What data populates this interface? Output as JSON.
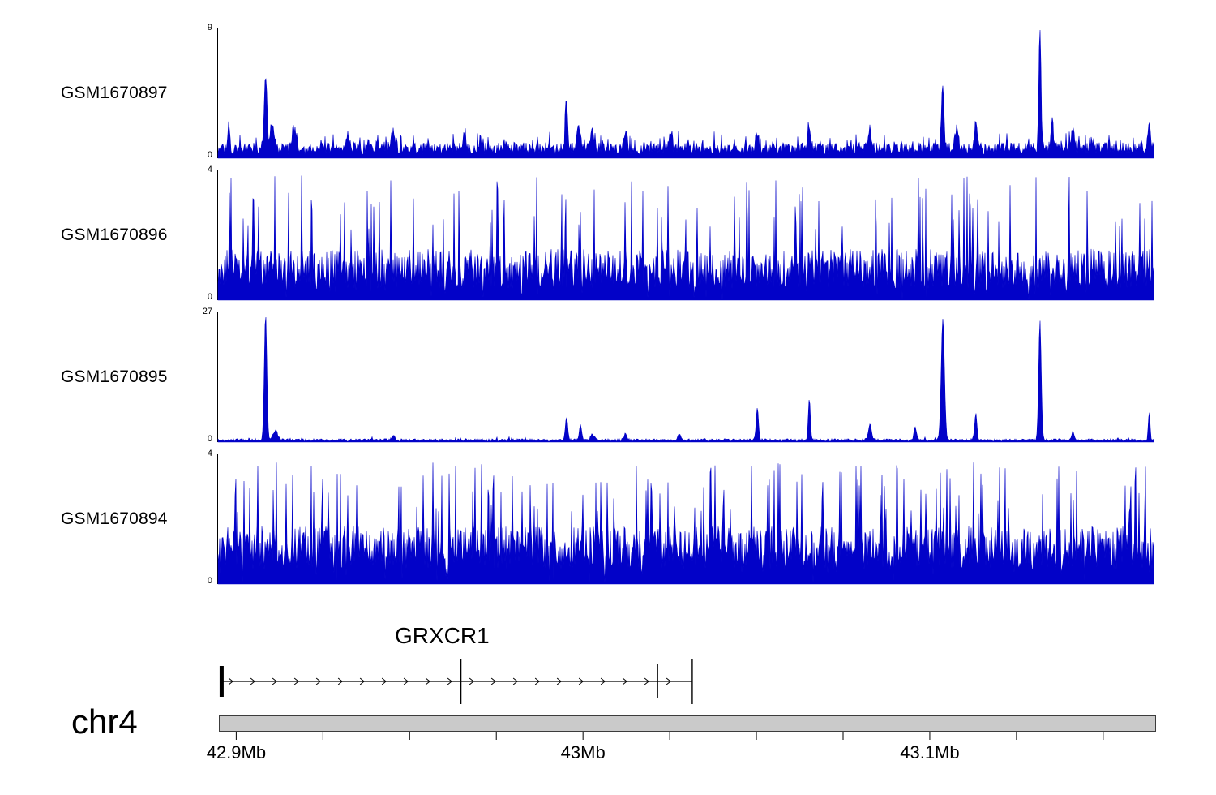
{
  "chart_data": {
    "type": "area",
    "title": "",
    "chromosome": "chr4",
    "signal_color": "#0202c8",
    "x_domain_mb": [
      42.895,
      43.165
    ],
    "x_axis": {
      "minor_step_mb": 0.025,
      "major_ticks": [
        {
          "mb": 42.9,
          "label": "42.9Mb"
        },
        {
          "mb": 43.0,
          "label": "43Mb"
        },
        {
          "mb": 43.1,
          "label": "43.1Mb"
        }
      ]
    },
    "gene": {
      "name": "GRXCR1",
      "strand": "+",
      "line_start_mb": 42.8955,
      "line_end_mb": 43.0315,
      "exons": [
        {
          "mb": 42.8958,
          "type": "thick"
        },
        {
          "mb": 42.9648,
          "type": "tall"
        },
        {
          "mb": 43.0215,
          "type": "medium"
        },
        {
          "mb": 43.0315,
          "type": "tall"
        }
      ]
    },
    "tracks": [
      {
        "name": "GSM1670897",
        "ymax": 9,
        "ymin": 0,
        "style": "sparse",
        "seed": 101,
        "base": 0.85,
        "spike_prob": 0.14,
        "spike_extra": 0.9,
        "peaks": [
          {
            "mb": 42.898,
            "h": 1.6,
            "w": 2
          },
          {
            "mb": 42.9087,
            "h": 5.4,
            "w": 2.2
          },
          {
            "mb": 42.9105,
            "h": 1.4,
            "w": 4
          },
          {
            "mb": 42.917,
            "h": 1.3,
            "w": 3
          },
          {
            "mb": 42.9325,
            "h": 0.9,
            "w": 3
          },
          {
            "mb": 42.9455,
            "h": 0.8,
            "w": 3
          },
          {
            "mb": 42.966,
            "h": 0.8,
            "w": 3
          },
          {
            "mb": 42.9955,
            "h": 3.1,
            "w": 2
          },
          {
            "mb": 42.999,
            "h": 1.4,
            "w": 3
          },
          {
            "mb": 43.003,
            "h": 1.2,
            "w": 3
          },
          {
            "mb": 43.0125,
            "h": 1.3,
            "w": 2.5
          },
          {
            "mb": 43.0255,
            "h": 1.1,
            "w": 2.5
          },
          {
            "mb": 43.0505,
            "h": 1.2,
            "w": 2.5
          },
          {
            "mb": 43.0655,
            "h": 1.3,
            "w": 2.5
          },
          {
            "mb": 43.083,
            "h": 1.0,
            "w": 2.5
          },
          {
            "mb": 43.104,
            "h": 4.7,
            "w": 2.2
          },
          {
            "mb": 43.108,
            "h": 1.5,
            "w": 2.5
          },
          {
            "mb": 43.1135,
            "h": 2.0,
            "w": 2
          },
          {
            "mb": 43.132,
            "h": 8.9,
            "w": 1.8
          },
          {
            "mb": 43.1355,
            "h": 2.0,
            "w": 2
          },
          {
            "mb": 43.1415,
            "h": 1.2,
            "w": 2.5
          },
          {
            "mb": 43.1635,
            "h": 2.2,
            "w": 1.8
          }
        ]
      },
      {
        "name": "GSM1670896",
        "ymax": 4,
        "ymin": 0,
        "style": "dense",
        "seed": 202,
        "base": 0.35,
        "jitter": 1.25,
        "spike_prob": 0.09,
        "spike_min": 2.2,
        "spike_max": 3.9
      },
      {
        "name": "GSM1670895",
        "ymax": 27,
        "ymin": 0,
        "style": "sparse",
        "seed": 303,
        "base": 0.55,
        "spike_prob": 0.04,
        "spike_extra": 0.5,
        "peaks": [
          {
            "mb": 42.9087,
            "h": 26.5,
            "w": 2.2
          },
          {
            "mb": 42.9115,
            "h": 2.0,
            "w": 4
          },
          {
            "mb": 42.9455,
            "h": 0.8,
            "w": 3
          },
          {
            "mb": 42.9955,
            "h": 4.8,
            "w": 2
          },
          {
            "mb": 42.9995,
            "h": 3.2,
            "w": 2
          },
          {
            "mb": 43.003,
            "h": 1.2,
            "w": 3
          },
          {
            "mb": 43.0125,
            "h": 1.4,
            "w": 2.5
          },
          {
            "mb": 43.028,
            "h": 1.0,
            "w": 3
          },
          {
            "mb": 43.0505,
            "h": 6.8,
            "w": 2
          },
          {
            "mb": 43.0655,
            "h": 8.5,
            "w": 1.8
          },
          {
            "mb": 43.083,
            "h": 3.4,
            "w": 2.8
          },
          {
            "mb": 43.096,
            "h": 2.8,
            "w": 2.2
          },
          {
            "mb": 43.104,
            "h": 25.8,
            "w": 2.8
          },
          {
            "mb": 43.1135,
            "h": 5.5,
            "w": 2
          },
          {
            "mb": 43.132,
            "h": 25.0,
            "w": 2.2
          },
          {
            "mb": 43.1415,
            "h": 1.6,
            "w": 2.5
          },
          {
            "mb": 43.1635,
            "h": 6.0,
            "w": 1.5
          }
        ]
      },
      {
        "name": "GSM1670894",
        "ymax": 4,
        "ymin": 0,
        "style": "dense",
        "seed": 404,
        "base": 0.45,
        "jitter": 1.35,
        "spike_prob": 0.12,
        "spike_min": 2.2,
        "spike_max": 3.8
      }
    ]
  }
}
